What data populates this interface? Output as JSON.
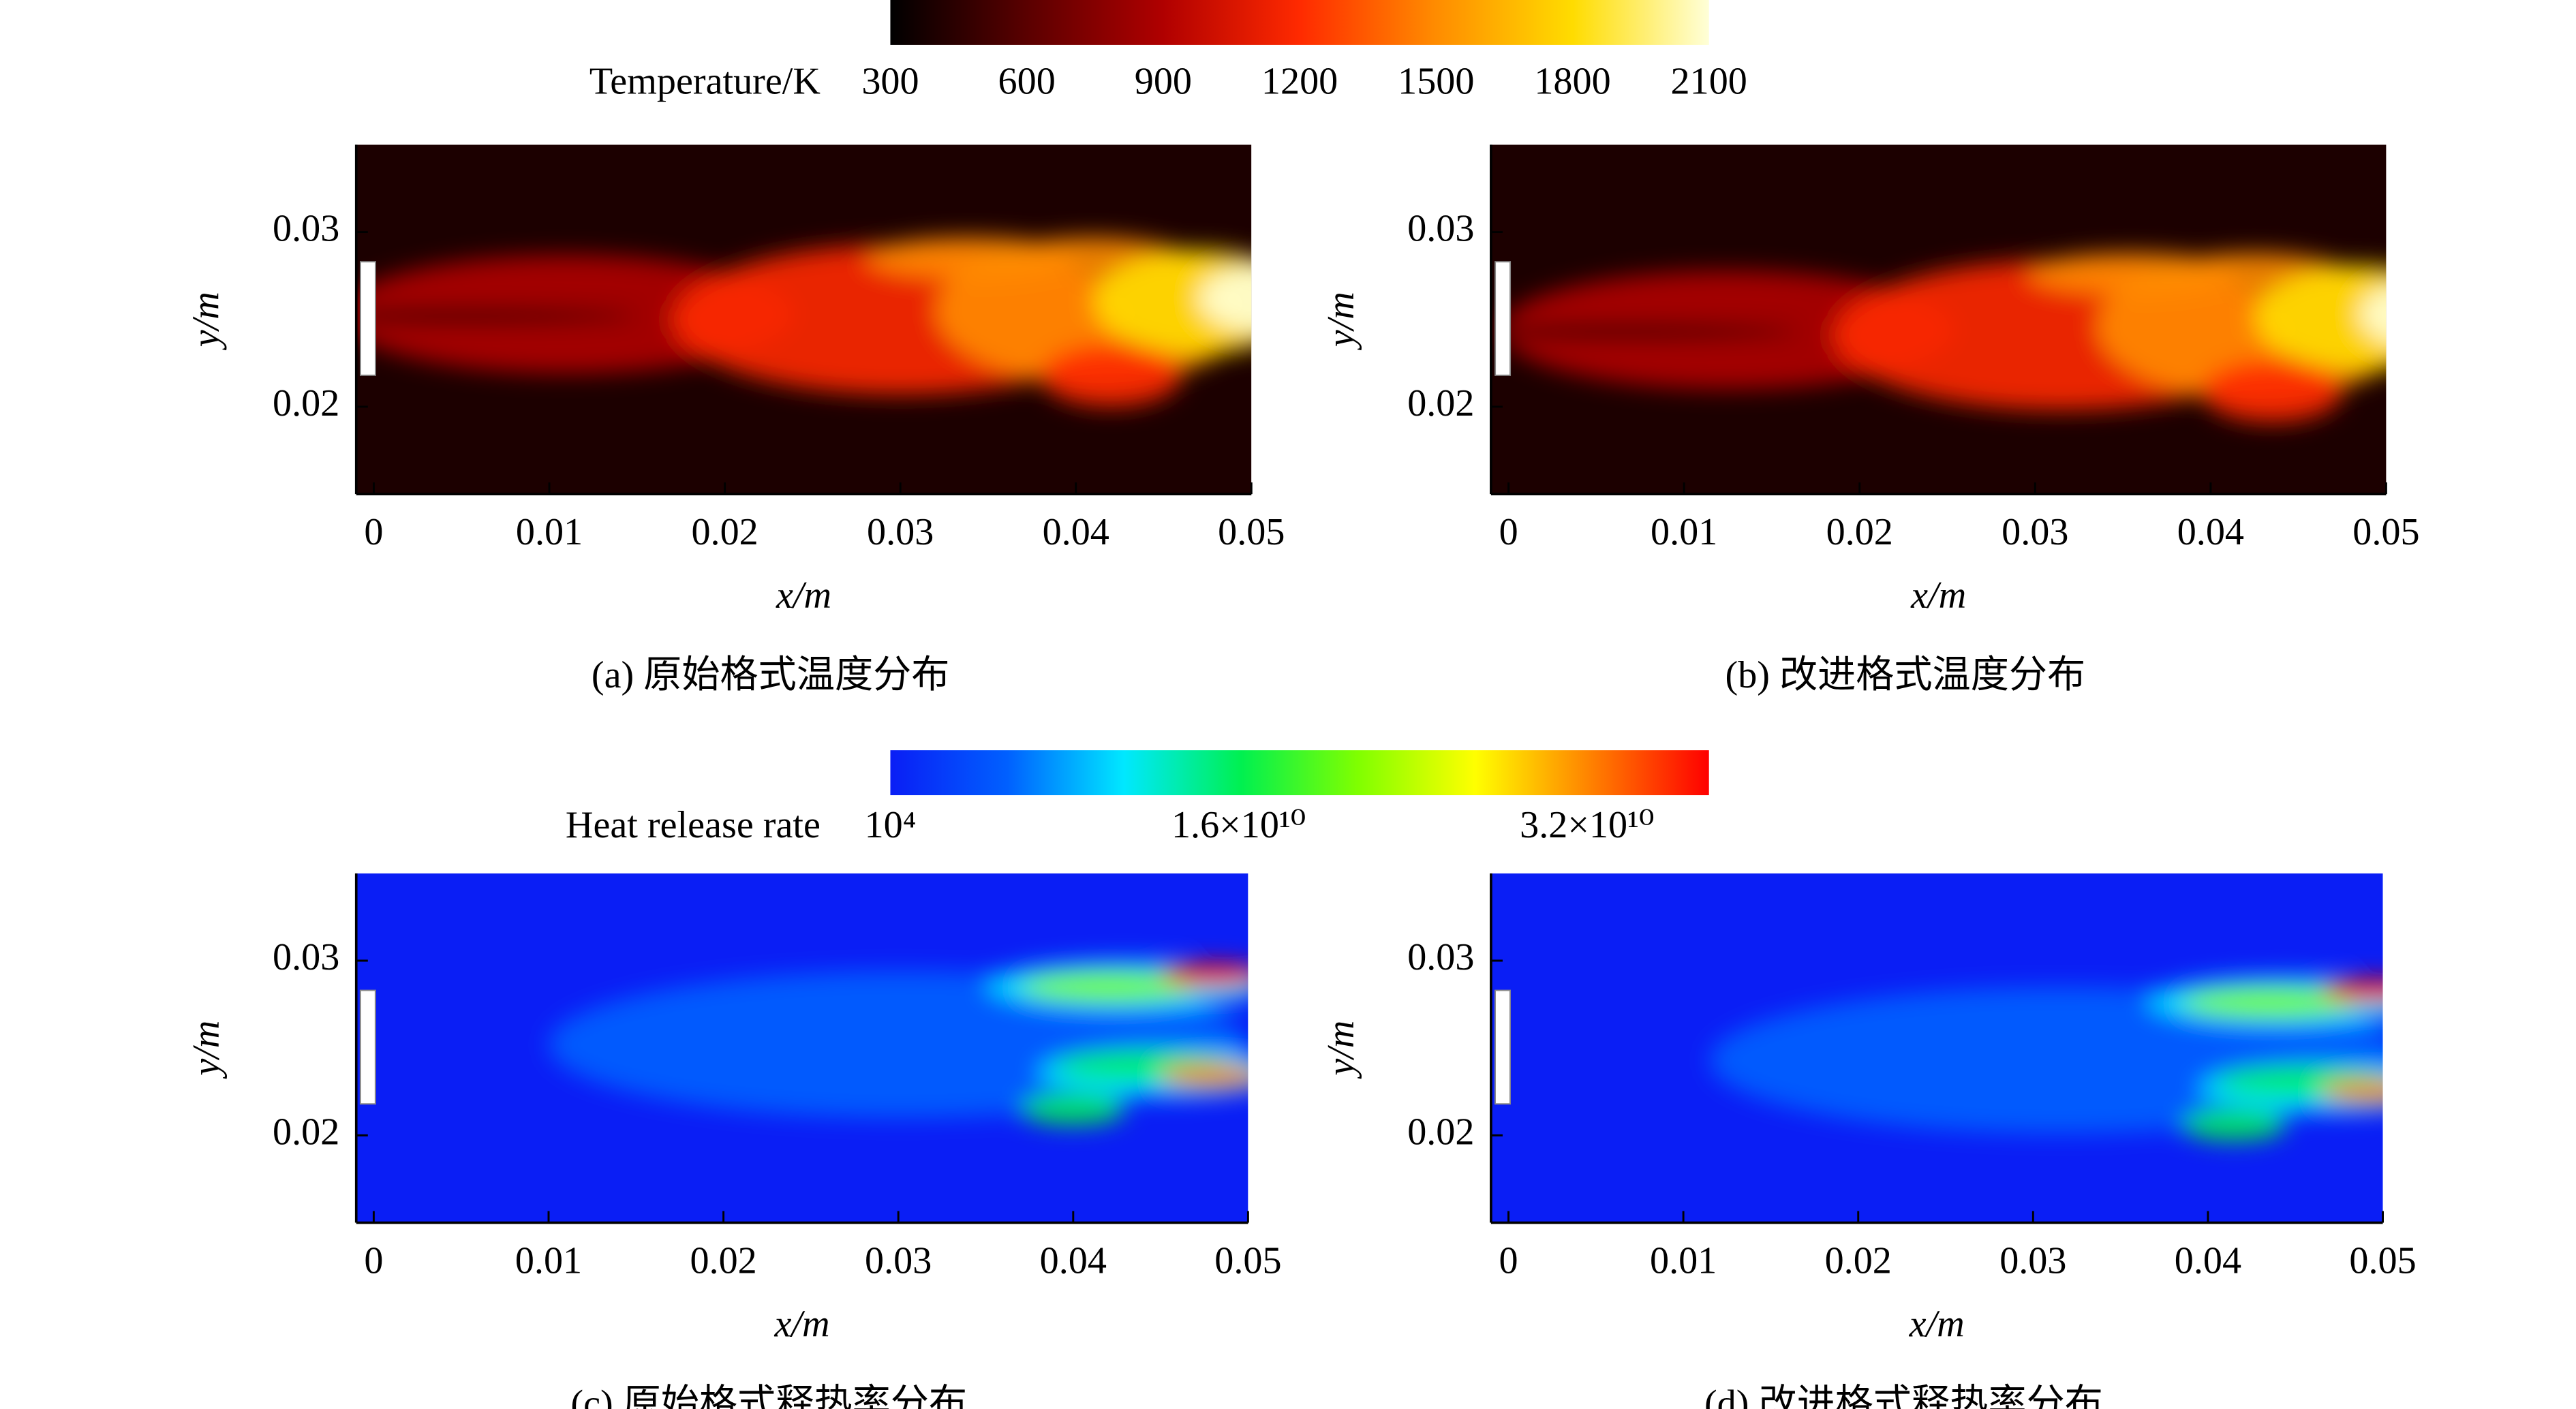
{
  "chart_data": [
    {
      "type": "contour",
      "title": "(a) 原始格式温度分布",
      "xlabel": "x/m",
      "ylabel": "y/m",
      "xlim": [
        -0.001,
        0.05
      ],
      "xticks": [
        0,
        0.01,
        0.02,
        0.03,
        0.04,
        0.05
      ],
      "ylim": [
        0.015,
        0.035
      ],
      "yticks": [
        0.02,
        0.03
      ],
      "colorbar": {
        "label": "Temperature/K",
        "clim": [
          300,
          2100
        ],
        "ticks": [
          300,
          600,
          900,
          1200,
          1500,
          1800,
          2100
        ],
        "colormap": [
          "#000000",
          "#5a0000",
          "#b00000",
          "#ff2a00",
          "#ff8c00",
          "#ffdc00",
          "#ffffd8"
        ]
      }
    },
    {
      "type": "contour",
      "title": "(b) 改进格式温度分布",
      "xlabel": "x/m",
      "ylabel": "y/m",
      "xlim": [
        -0.001,
        0.05
      ],
      "xticks": [
        0,
        0.01,
        0.02,
        0.03,
        0.04,
        0.05
      ],
      "ylim": [
        0.015,
        0.035
      ],
      "yticks": [
        0.02,
        0.03
      ]
    },
    {
      "type": "contour",
      "title": "(c) 原始格式释热率分布",
      "xlabel": "x/m",
      "ylabel": "y/m",
      "xlim": [
        -0.001,
        0.05
      ],
      "xticks": [
        0,
        0.01,
        0.02,
        0.03,
        0.04,
        0.05
      ],
      "ylim": [
        0.015,
        0.035
      ],
      "yticks": [
        0.02,
        0.03
      ],
      "colorbar": {
        "label": "Heat release rate",
        "clim": [
          10000,
          37600000000
        ],
        "ticks": [
          {
            "value": 10000,
            "label": "10⁴"
          },
          {
            "value": 16000000000,
            "label": "1.6×10¹⁰"
          },
          {
            "value": 32000000000,
            "label": "3.2×10¹⁰"
          }
        ],
        "colormap": [
          "#0a1ef5",
          "#0060ff",
          "#00e8ff",
          "#00f050",
          "#80ff00",
          "#ffff00",
          "#ff8000",
          "#ff0000"
        ]
      }
    },
    {
      "type": "contour",
      "title": "(d) 改进格式释热率分布",
      "xlabel": "x/m",
      "ylabel": "y/m",
      "xlim": [
        -0.001,
        0.05
      ],
      "xticks": [
        0,
        0.01,
        0.02,
        0.03,
        0.04,
        0.05
      ],
      "ylim": [
        0.015,
        0.035
      ],
      "yticks": [
        0.02,
        0.03
      ]
    }
  ]
}
